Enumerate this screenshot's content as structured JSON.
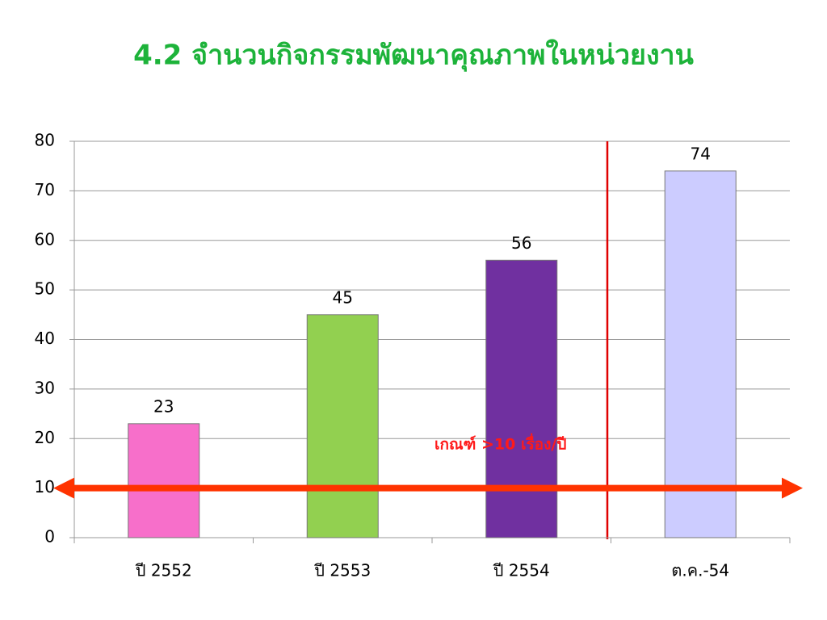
{
  "chart_data": {
    "type": "bar",
    "title": "4.2 จำนวนกิจกรรมพัฒนาคุณภาพในหน่วยงาน",
    "categories": [
      "ปี 2552",
      "ปี 2553",
      "ปี 2554",
      "ต.ค.-54"
    ],
    "values": [
      23,
      45,
      56,
      74
    ],
    "colors": [
      "#f76fca",
      "#92d050",
      "#7030a0",
      "#ccccff"
    ],
    "ylim": [
      0,
      80
    ],
    "yticks": [
      0,
      10,
      20,
      30,
      40,
      50,
      60,
      70,
      80
    ],
    "grid": true,
    "threshold": 10,
    "threshold_color": "#ff3300",
    "annotation": "เกณฑ์ >10 เรื่อง/ปี"
  }
}
